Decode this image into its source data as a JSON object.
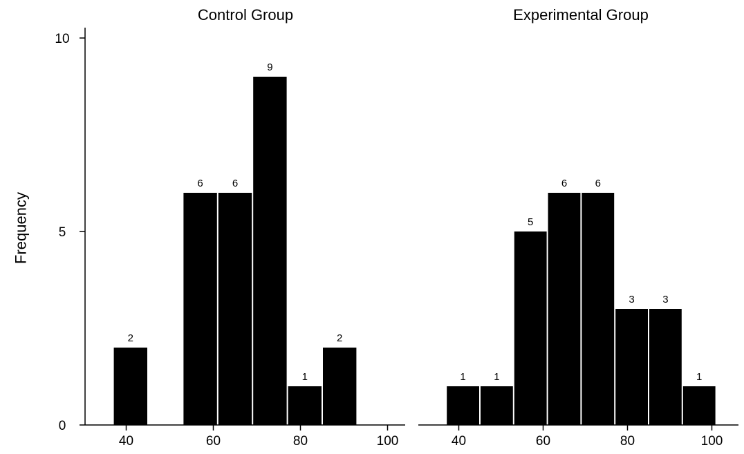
{
  "chart_data": [
    {
      "type": "bar",
      "title": "Control Group",
      "ylabel": "Frequency",
      "xlabel": "",
      "ylim": [
        0,
        10
      ],
      "yticks": [
        0,
        5,
        10
      ],
      "xlim": [
        30,
        105
      ],
      "xticks": [
        40,
        60,
        80,
        100
      ],
      "bin_width": 8,
      "bins": [
        {
          "x0": 37,
          "x1": 45,
          "value": 2
        },
        {
          "x0": 53,
          "x1": 61,
          "value": 6
        },
        {
          "x0": 61,
          "x1": 69,
          "value": 6
        },
        {
          "x0": 69,
          "x1": 77,
          "value": 9
        },
        {
          "x0": 77,
          "x1": 85,
          "value": 1
        },
        {
          "x0": 85,
          "x1": 93,
          "value": 2
        }
      ],
      "bar_color": "#000000",
      "grid": false
    },
    {
      "type": "bar",
      "title": "Experimental Group",
      "xlabel": "",
      "ylim": [
        0,
        10
      ],
      "xlim": [
        30,
        105
      ],
      "xticks": [
        40,
        60,
        80,
        100
      ],
      "bin_width": 8,
      "bins": [
        {
          "x0": 37,
          "x1": 45,
          "value": 1
        },
        {
          "x0": 45,
          "x1": 53,
          "value": 1
        },
        {
          "x0": 53,
          "x1": 61,
          "value": 5
        },
        {
          "x0": 61,
          "x1": 69,
          "value": 6
        },
        {
          "x0": 69,
          "x1": 77,
          "value": 6
        },
        {
          "x0": 77,
          "x1": 85,
          "value": 3
        },
        {
          "x0": 85,
          "x1": 93,
          "value": 3
        },
        {
          "x0": 93,
          "x1": 101,
          "value": 1
        }
      ],
      "bar_color": "#000000",
      "grid": false
    }
  ]
}
